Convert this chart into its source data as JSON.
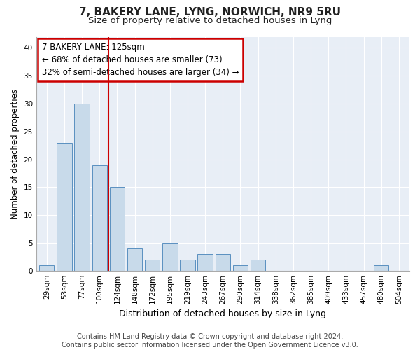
{
  "title": "7, BAKERY LANE, LYNG, NORWICH, NR9 5RU",
  "subtitle": "Size of property relative to detached houses in Lyng",
  "xlabel": "Distribution of detached houses by size in Lyng",
  "ylabel": "Number of detached properties",
  "categories": [
    "29sqm",
    "53sqm",
    "77sqm",
    "100sqm",
    "124sqm",
    "148sqm",
    "172sqm",
    "195sqm",
    "219sqm",
    "243sqm",
    "267sqm",
    "290sqm",
    "314sqm",
    "338sqm",
    "362sqm",
    "385sqm",
    "409sqm",
    "433sqm",
    "457sqm",
    "480sqm",
    "504sqm"
  ],
  "values": [
    1,
    23,
    30,
    19,
    15,
    4,
    2,
    5,
    2,
    3,
    3,
    1,
    2,
    0,
    0,
    0,
    0,
    0,
    0,
    1,
    0
  ],
  "bar_color": "#c8daea",
  "bar_edge_color": "#5a90c0",
  "annotation_text": "7 BAKERY LANE: 125sqm\n← 68% of detached houses are smaller (73)\n32% of semi-detached houses are larger (34) →",
  "annotation_box_color": "#ffffff",
  "annotation_box_edge_color": "#cc0000",
  "vline_x": 3.5,
  "vline_color": "#cc0000",
  "ylim": [
    0,
    42
  ],
  "yticks": [
    0,
    5,
    10,
    15,
    20,
    25,
    30,
    35,
    40
  ],
  "footnote": "Contains HM Land Registry data © Crown copyright and database right 2024.\nContains public sector information licensed under the Open Government Licence v3.0.",
  "background_color": "#ffffff",
  "plot_background_color": "#e8eef6",
  "grid_color": "#ffffff",
  "title_fontsize": 11,
  "subtitle_fontsize": 9.5,
  "xlabel_fontsize": 9,
  "ylabel_fontsize": 8.5,
  "tick_fontsize": 7.5,
  "annotation_fontsize": 8.5,
  "footnote_fontsize": 7
}
